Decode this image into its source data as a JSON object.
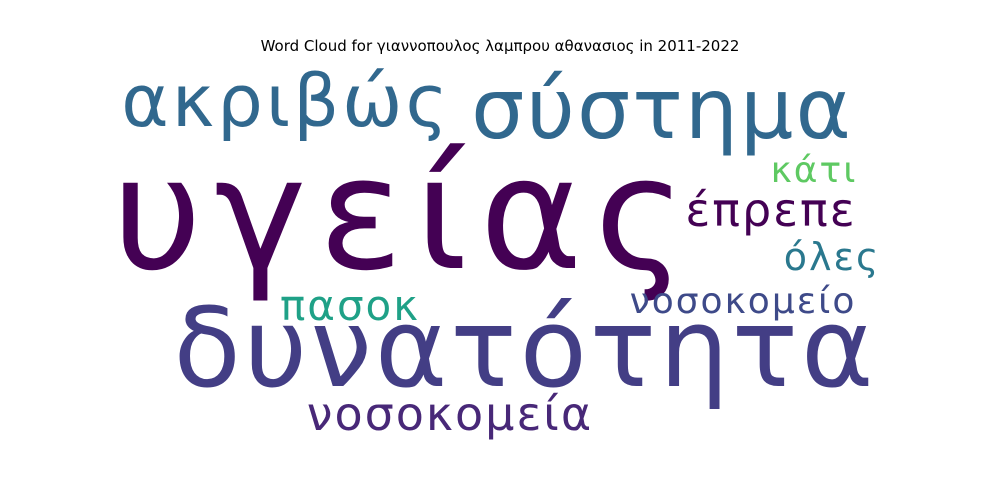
{
  "chart_data": {
    "type": "wordcloud",
    "title": "Word Cloud for γιαννοπουλος λαμπρου αθανασιος in 2011-2022",
    "words": [
      {
        "text": "υγείας",
        "color": "#440154"
      },
      {
        "text": "δυνατότητα",
        "color": "#433e85"
      },
      {
        "text": "σύστημα",
        "color": "#31688e"
      },
      {
        "text": "ακριβώς",
        "color": "#31688e"
      },
      {
        "text": "νοσοκομεία",
        "color": "#482878"
      },
      {
        "text": "έπρεπε",
        "color": "#440154"
      },
      {
        "text": "νοσοκομείο",
        "color": "#3e4a89"
      },
      {
        "text": "πασοκ",
        "color": "#1fa187"
      },
      {
        "text": "όλες",
        "color": "#2a788e"
      },
      {
        "text": "κάτι",
        "color": "#5ec962"
      }
    ]
  }
}
